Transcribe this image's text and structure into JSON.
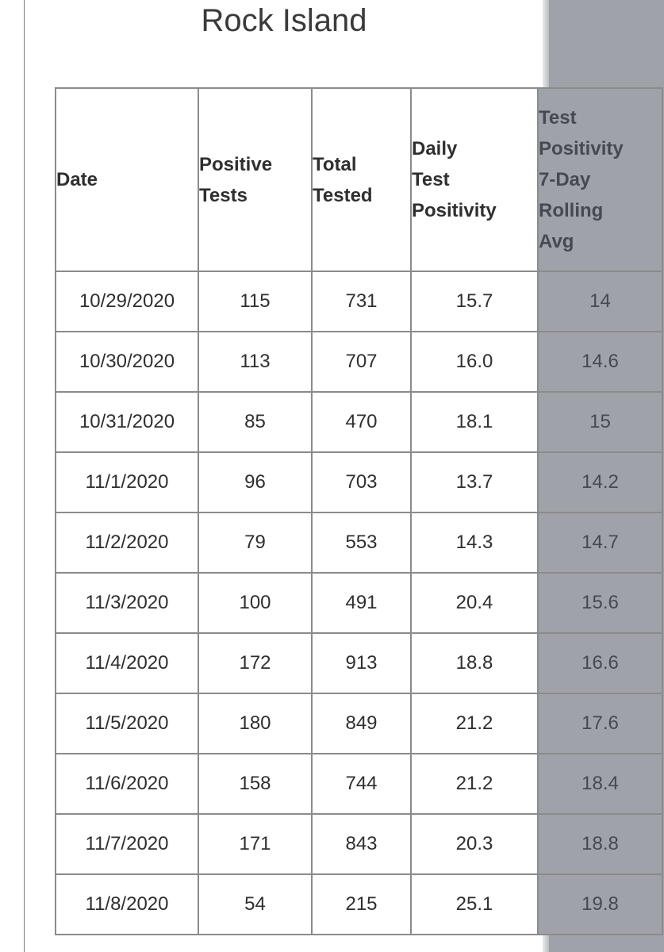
{
  "title": "Rock Island",
  "table": {
    "headers": [
      [
        "Date"
      ],
      [
        "Positive",
        "Tests"
      ],
      [
        "Total",
        "Tested"
      ],
      [
        "Daily",
        "Test",
        "Positivity"
      ],
      [
        "Test",
        "Positivity",
        "7-Day",
        "Rolling",
        "Avg"
      ]
    ],
    "rows": [
      [
        "10/29/2020",
        "115",
        "731",
        "15.7",
        "14"
      ],
      [
        "10/30/2020",
        "113",
        "707",
        "16.0",
        "14.6"
      ],
      [
        "10/31/2020",
        "85",
        "470",
        "18.1",
        "15"
      ],
      [
        "11/1/2020",
        "96",
        "703",
        "13.7",
        "14.2"
      ],
      [
        "11/2/2020",
        "79",
        "553",
        "14.3",
        "14.7"
      ],
      [
        "11/3/2020",
        "100",
        "491",
        "20.4",
        "15.6"
      ],
      [
        "11/4/2020",
        "172",
        "913",
        "18.8",
        "16.6"
      ],
      [
        "11/5/2020",
        "180",
        "849",
        "21.2",
        "17.6"
      ],
      [
        "11/6/2020",
        "158",
        "744",
        "21.2",
        "18.4"
      ],
      [
        "11/7/2020",
        "171",
        "843",
        "20.3",
        "18.8"
      ],
      [
        "11/8/2020",
        "54",
        "215",
        "25.1",
        "19.8"
      ]
    ]
  },
  "colors": {
    "panel_gray": "#9fa3a9",
    "border": "#8b8b8b",
    "text": "#2f2f2f"
  }
}
